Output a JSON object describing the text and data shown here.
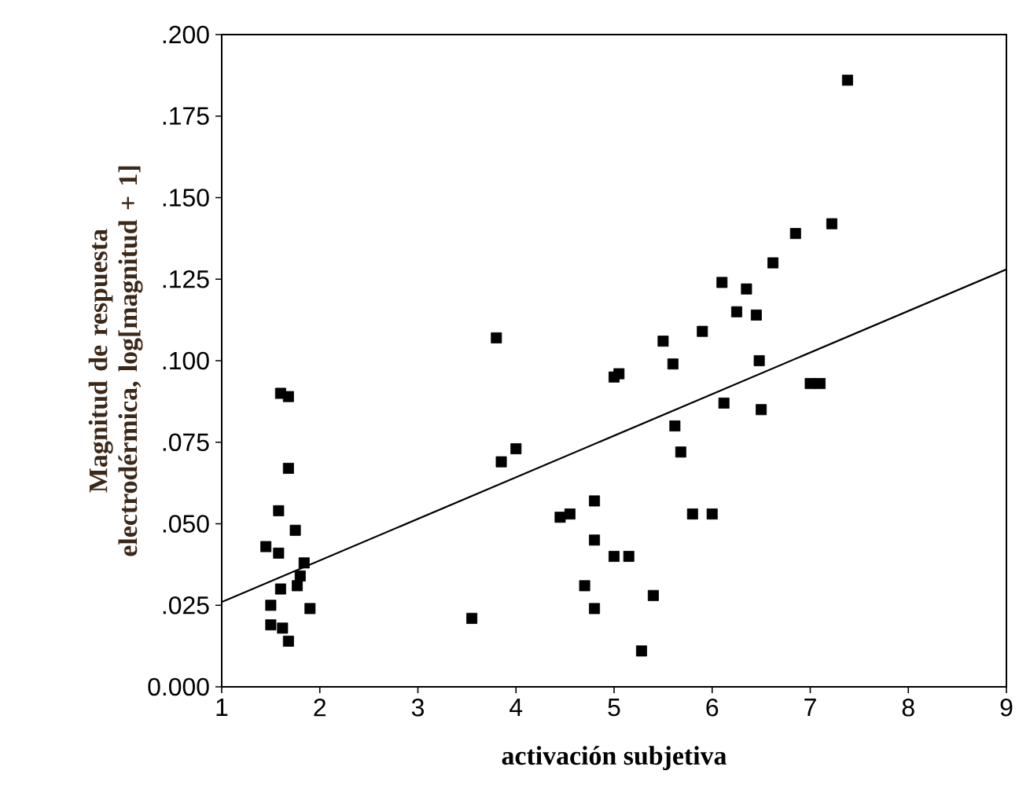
{
  "chart_data": {
    "type": "scatter",
    "xlabel": "activación subjetiva",
    "ylabel": "Magnitud de respuesta electrodérmica, log[magnitud + 1]",
    "xlim": [
      1,
      9
    ],
    "ylim": [
      0,
      0.2
    ],
    "xticks": [
      1,
      2,
      3,
      4,
      5,
      6,
      7,
      8,
      9
    ],
    "yticks": [
      {
        "value": 0,
        "label": "0.000"
      },
      {
        "value": 0.025,
        "label": ".025"
      },
      {
        "value": 0.05,
        "label": ".050"
      },
      {
        "value": 0.075,
        "label": ".075"
      },
      {
        "value": 0.1,
        "label": ".100"
      },
      {
        "value": 0.125,
        "label": ".125"
      },
      {
        "value": 0.15,
        "label": ".150"
      },
      {
        "value": 0.175,
        "label": ".175"
      },
      {
        "value": 0.2,
        "label": ".200"
      }
    ],
    "grid": false,
    "series": [
      {
        "type": "scatter",
        "color": "#000000",
        "marker": "square",
        "x": [
          1.45,
          1.5,
          1.5,
          1.58,
          1.58,
          1.6,
          1.6,
          1.62,
          1.68,
          1.68,
          1.68,
          1.75,
          1.77,
          1.8,
          1.84,
          1.9,
          3.55,
          3.8,
          3.85,
          4.0,
          4.45,
          4.55,
          4.7,
          4.8,
          4.8,
          4.8,
          5.0,
          5.05,
          5.0,
          5.15,
          5.28,
          5.4,
          5.5,
          5.6,
          5.62,
          5.68,
          5.8,
          5.9,
          6.0,
          6.1,
          6.12,
          6.25,
          6.35,
          6.45,
          6.48,
          6.5,
          6.62,
          6.85,
          7.0,
          7.1,
          7.22,
          7.38
        ],
        "values": [
          0.043,
          0.025,
          0.019,
          0.054,
          0.041,
          0.09,
          0.03,
          0.018,
          0.067,
          0.089,
          0.014,
          0.048,
          0.031,
          0.034,
          0.038,
          0.024,
          0.021,
          0.107,
          0.069,
          0.073,
          0.052,
          0.053,
          0.031,
          0.057,
          0.045,
          0.024,
          0.095,
          0.096,
          0.04,
          0.04,
          0.011,
          0.028,
          0.106,
          0.099,
          0.08,
          0.072,
          0.053,
          0.109,
          0.053,
          0.124,
          0.087,
          0.115,
          0.122,
          0.114,
          0.1,
          0.085,
          0.13,
          0.139,
          0.093,
          0.093,
          0.142,
          0.186
        ]
      },
      {
        "type": "line",
        "color": "#000000",
        "marker": "none",
        "line_style": "solid",
        "x": [
          1,
          9
        ],
        "values": [
          0.026,
          0.128
        ]
      }
    ]
  }
}
